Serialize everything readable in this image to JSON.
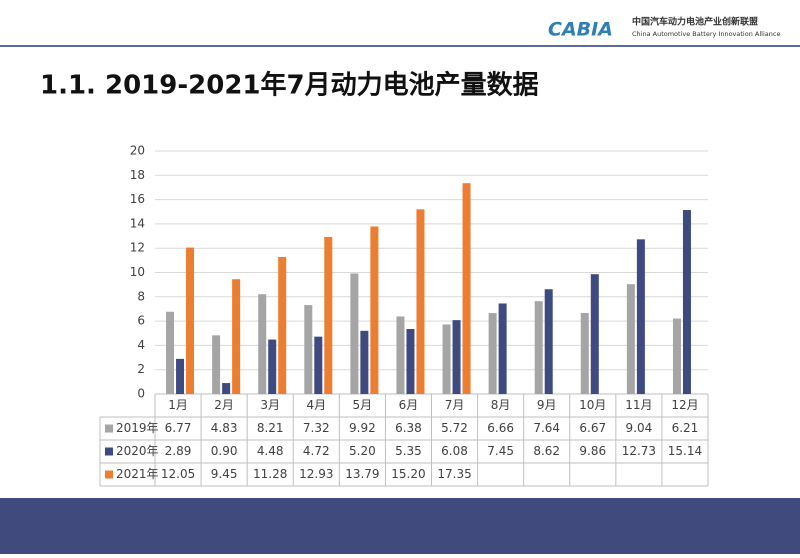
{
  "header": {
    "logo": "CABIA",
    "org_cn": "中国汽车动力电池产业创新联盟",
    "org_en": "China Automotive Battery Innovation Alliance"
  },
  "title": "1.1.  2019-2021年7月动力电池产量数据",
  "chart_data": {
    "type": "bar",
    "categories": [
      "1月",
      "2月",
      "3月",
      "4月",
      "5月",
      "6月",
      "7月",
      "8月",
      "9月",
      "10月",
      "11月",
      "12月"
    ],
    "series": [
      {
        "name": "2019年",
        "color": "#a5a5a5",
        "values": [
          6.77,
          4.83,
          8.21,
          7.32,
          9.92,
          6.38,
          5.72,
          6.66,
          7.64,
          6.67,
          9.04,
          6.21
        ],
        "value_labels": [
          "6.77",
          "4.83",
          "8.21",
          "7.32",
          "9.92",
          "6.38",
          "5.72",
          "6.66",
          "7.64",
          "6.67",
          "9.04",
          "6.21"
        ]
      },
      {
        "name": "2020年",
        "color": "#3f4a80",
        "values": [
          2.89,
          0.9,
          4.48,
          4.72,
          5.2,
          5.35,
          6.08,
          7.45,
          8.62,
          9.86,
          12.73,
          15.14
        ],
        "value_labels": [
          "2.89",
          "0.90",
          "4.48",
          "4.72",
          "5.20",
          "5.35",
          "6.08",
          "7.45",
          "8.62",
          "9.86",
          "12.73",
          "15.14"
        ]
      },
      {
        "name": "2021年",
        "color": "#ed7d31",
        "values": [
          12.05,
          9.45,
          11.28,
          12.93,
          13.79,
          15.2,
          17.35,
          null,
          null,
          null,
          null,
          null
        ],
        "value_labels": [
          "12.05",
          "9.45",
          "11.28",
          "12.93",
          "13.79",
          "15.20",
          "17.35",
          null,
          null,
          null,
          null,
          null
        ]
      }
    ],
    "ylim": [
      0,
      20
    ],
    "yticks": [
      0,
      2,
      4,
      6,
      8,
      10,
      12,
      14,
      16,
      18,
      20
    ],
    "grid": true
  }
}
